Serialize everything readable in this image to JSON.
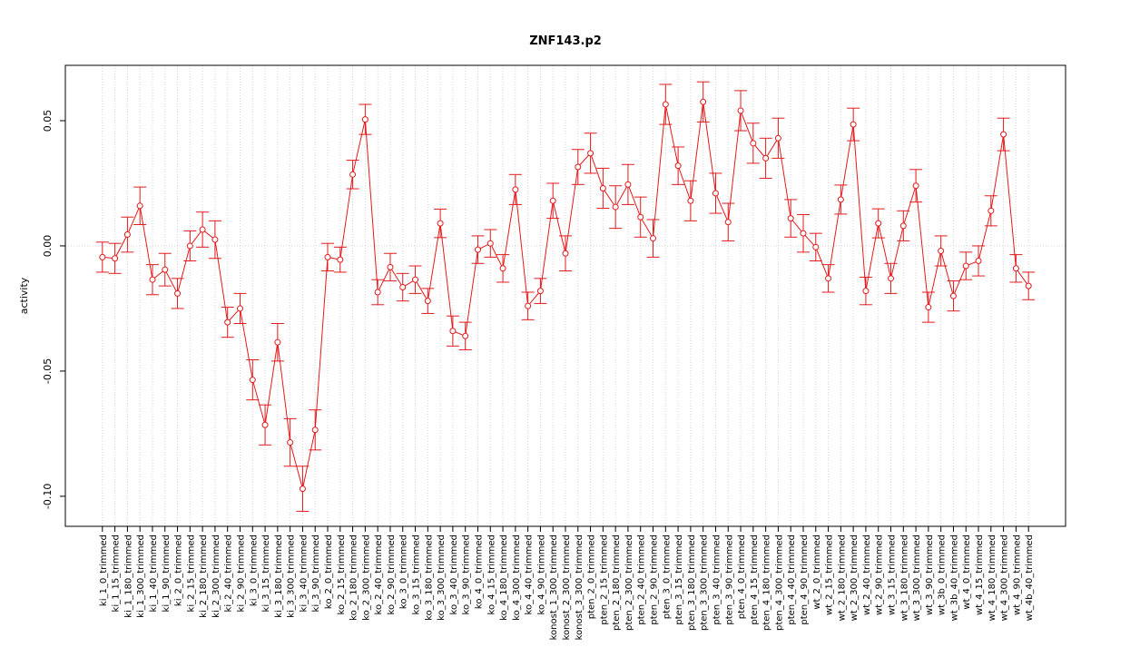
{
  "chart_data": {
    "type": "line",
    "title": "ZNF143.p2",
    "y_label": "activity",
    "categories": [
      "ki_1_0_trimmed",
      "ki_1_15_trimmed",
      "ki_1_180_trimmed",
      "ki_1_300_trimmed",
      "ki_1_40_trimmed",
      "ki_1_90_trimmed",
      "ki_2_0_trimmed",
      "ki_2_15_trimmed",
      "ki_2_180_trimmed",
      "ki_2_300_trimmed",
      "ki_2_40_trimmed",
      "ki_2_90_trimmed",
      "ki_3_0_trimmed",
      "ki_3_15_trimmed",
      "ki_3_180_trimmed",
      "ki_3_300_trimmed",
      "ki_3_40_trimmed",
      "ki_3_90_trimmed",
      "ko_2_0_trimmed",
      "ko_2_15_trimmed",
      "ko_2_180_trimmed",
      "ko_2_300_trimmed",
      "ko_2_40_trimmed",
      "ko_2_90_trimmed",
      "ko_3_0_trimmed",
      "ko_3_15_trimmed",
      "ko_3_180_trimmed",
      "ko_3_300_trimmed",
      "ko_3_40_trimmed",
      "ko_3_90_trimmed",
      "ko_4_0_trimmed",
      "ko_4_15_trimmed",
      "ko_4_180_trimmed",
      "ko_4_300_trimmed",
      "ko_4_40_trimmed",
      "ko_4_90_trimmed",
      "konost_1_300_trimmed",
      "konost_2_300_trimmed",
      "konost_3_300_trimmed",
      "pten_2_0_trimmed",
      "pten_2_15_trimmed",
      "pten_2_180_trimmed",
      "pten_2_300_trimmed",
      "pten_2_40_trimmed",
      "pten_2_90_trimmed",
      "pten_3_0_trimmed",
      "pten_3_15_trimmed",
      "pten_3_180_trimmed",
      "pten_3_300_trimmed",
      "pten_3_40_trimmed",
      "pten_3_90_trimmed",
      "pten_4_0_trimmed",
      "pten_4_15_trimmed",
      "pten_4_180_trimmed",
      "pten_4_300_trimmed",
      "pten_4_40_trimmed",
      "pten_4_90_trimmed",
      "wt_2_0_trimmed",
      "wt_2_15_trimmed",
      "wt_2_180_trimmed",
      "wt_2_300_trimmed",
      "wt_2_40_trimmed",
      "wt_2_90_trimmed",
      "wt_3_15_trimmed",
      "wt_3_180_trimmed",
      "wt_3_300_trimmed",
      "wt_3_90_trimmed",
      "wt_3b_0_trimmed",
      "wt_3b_40_trimmed",
      "wt_4_0_trimmed",
      "wt_4_15_trimmed",
      "wt_4_180_trimmed",
      "wt_4_300_trimmed",
      "wt_4_90_trimmed",
      "wt_4b_40_trimmed"
    ],
    "series": [
      {
        "color": "#e41a1c",
        "values": [
          -0.0045,
          -0.005,
          0.0045,
          0.016,
          -0.0135,
          -0.0095,
          -0.019,
          0.0,
          0.0065,
          0.0025,
          -0.0305,
          -0.025,
          -0.0535,
          -0.0715,
          -0.0385,
          -0.0785,
          -0.097,
          -0.0735,
          -0.0045,
          -0.0055,
          0.0285,
          0.0505,
          -0.0185,
          -0.0085,
          -0.0165,
          -0.0135,
          -0.022,
          0.009,
          -0.034,
          -0.036,
          -0.0015,
          0.001,
          -0.009,
          0.0225,
          -0.024,
          -0.018,
          0.018,
          -0.003,
          0.0315,
          0.037,
          0.023,
          0.0155,
          0.0245,
          0.0115,
          0.003,
          0.0565,
          0.032,
          0.018,
          0.0575,
          0.021,
          0.0095,
          0.054,
          0.041,
          0.035,
          0.043,
          0.011,
          0.005,
          -0.0005,
          -0.013,
          0.0185,
          0.0485,
          -0.018,
          0.009,
          -0.013,
          0.008,
          0.024,
          -0.0245,
          -0.002,
          -0.02,
          -0.008,
          -0.006,
          0.014,
          0.0445,
          -0.009,
          -0.016
        ],
        "errors": [
          0.006,
          0.006,
          0.007,
          0.0075,
          0.006,
          0.0065,
          0.006,
          0.006,
          0.007,
          0.0075,
          0.006,
          0.006,
          0.008,
          0.008,
          0.0075,
          0.0095,
          0.009,
          0.008,
          0.0055,
          0.005,
          0.0057,
          0.006,
          0.005,
          0.0055,
          0.0055,
          0.0055,
          0.005,
          0.0057,
          0.006,
          0.0055,
          0.0055,
          0.0055,
          0.0055,
          0.006,
          0.0055,
          0.005,
          0.007,
          0.007,
          0.007,
          0.008,
          0.008,
          0.0085,
          0.008,
          0.008,
          0.0075,
          0.008,
          0.0075,
          0.008,
          0.008,
          0.008,
          0.0075,
          0.008,
          0.008,
          0.008,
          0.008,
          0.0075,
          0.0075,
          0.0055,
          0.0055,
          0.0058,
          0.0065,
          0.0055,
          0.0058,
          0.006,
          0.006,
          0.0065,
          0.006,
          0.006,
          0.006,
          0.0055,
          0.006,
          0.006,
          0.0065,
          0.0055,
          0.0055
        ]
      }
    ],
    "ylim": [
      -0.112,
      0.0721
    ],
    "yticks": [
      {
        "value": -0.1,
        "label": "-0.10"
      },
      -0.05,
      {
        "value": 0,
        "label": "0.00"
      },
      0.05
    ],
    "hline": 0,
    "grid": true
  }
}
